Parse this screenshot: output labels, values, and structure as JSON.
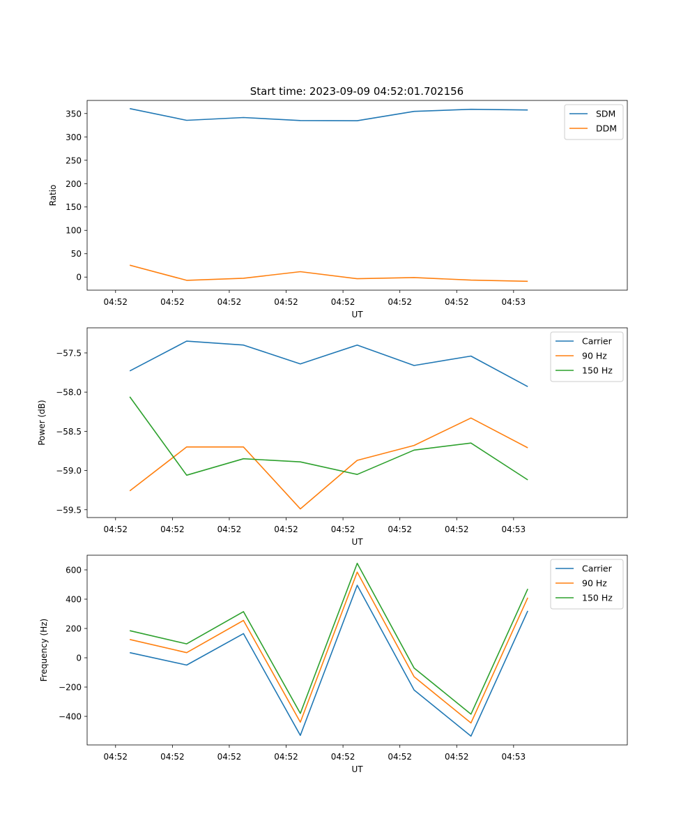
{
  "figure": {
    "title": "Start time: 2023-09-09 04:52:01.702156"
  },
  "colors": {
    "blue": "#1f77b4",
    "orange": "#ff7f0e",
    "green": "#2ca02c"
  },
  "chart_data": [
    {
      "type": "line",
      "xlabel": "UT",
      "ylabel": "Ratio",
      "x_tick_labels": [
        "04:52",
        "04:52",
        "04:52",
        "04:52",
        "04:52",
        "04:52",
        "04:52",
        "04:53"
      ],
      "x_range": [
        -0.5,
        9.0
      ],
      "x": [
        0.25,
        1.25,
        2.25,
        3.25,
        4.25,
        5.25,
        6.25,
        7.25
      ],
      "ylim": [
        -28,
        378
      ],
      "yticks": [
        0,
        50,
        100,
        150,
        200,
        250,
        300,
        350
      ],
      "legend_position": "top-right",
      "series": [
        {
          "name": "SDM",
          "color": "#1f77b4",
          "values": [
            360.5,
            335.5,
            341.5,
            335.0,
            334.5,
            354.5,
            359.0,
            357.5
          ]
        },
        {
          "name": "DDM",
          "color": "#ff7f0e",
          "values": [
            25.5,
            -7.0,
            -2.5,
            11.5,
            -3.5,
            -1.0,
            -6.5,
            -9.0
          ]
        }
      ]
    },
    {
      "type": "line",
      "xlabel": "UT",
      "ylabel": "Power (dB)",
      "x_tick_labels": [
        "04:52",
        "04:52",
        "04:52",
        "04:52",
        "04:52",
        "04:52",
        "04:52",
        "04:53"
      ],
      "x_range": [
        -0.5,
        9.0
      ],
      "x": [
        0.25,
        1.25,
        2.25,
        3.25,
        4.25,
        5.25,
        6.25,
        7.25
      ],
      "ylim": [
        -59.6,
        -57.18
      ],
      "yticks": [
        -59.5,
        -59.0,
        -58.5,
        -58.0,
        -57.5
      ],
      "ytick_labels": [
        "−59.5",
        "−59.0",
        "−58.5",
        "−58.0",
        "−57.5"
      ],
      "legend_position": "top-right",
      "series": [
        {
          "name": "Carrier",
          "color": "#1f77b4",
          "values": [
            -57.73,
            -57.35,
            -57.4,
            -57.64,
            -57.4,
            -57.66,
            -57.54,
            -57.93
          ]
        },
        {
          "name": "90 Hz",
          "color": "#ff7f0e",
          "values": [
            -59.26,
            -58.7,
            -58.7,
            -59.49,
            -58.87,
            -58.68,
            -58.33,
            -58.71
          ]
        },
        {
          "name": "150 Hz",
          "color": "#2ca02c",
          "values": [
            -58.06,
            -59.06,
            -58.85,
            -58.89,
            -59.05,
            -58.74,
            -58.65,
            -59.12
          ]
        }
      ]
    },
    {
      "type": "line",
      "xlabel": "UT",
      "ylabel": "Frequency (Hz)",
      "x_tick_labels": [
        "04:52",
        "04:52",
        "04:52",
        "04:52",
        "04:52",
        "04:52",
        "04:52",
        "04:53"
      ],
      "x_range": [
        -0.5,
        9.0
      ],
      "x": [
        0.25,
        1.25,
        2.25,
        3.25,
        4.25,
        5.25,
        6.25,
        7.25
      ],
      "ylim": [
        -595,
        700
      ],
      "yticks": [
        -400,
        -200,
        0,
        200,
        400,
        600
      ],
      "ytick_labels": [
        "−400",
        "−200",
        "0",
        "200",
        "400",
        "600"
      ],
      "legend_position": "top-right",
      "series": [
        {
          "name": "Carrier",
          "color": "#1f77b4",
          "values": [
            35,
            -50,
            165,
            -530,
            495,
            -220,
            -535,
            320
          ]
        },
        {
          "name": "90 Hz",
          "color": "#ff7f0e",
          "values": [
            125,
            35,
            255,
            -440,
            585,
            -130,
            -445,
            410
          ]
        },
        {
          "name": "150 Hz",
          "color": "#2ca02c",
          "values": [
            185,
            95,
            315,
            -380,
            645,
            -70,
            -385,
            470
          ]
        }
      ]
    }
  ]
}
